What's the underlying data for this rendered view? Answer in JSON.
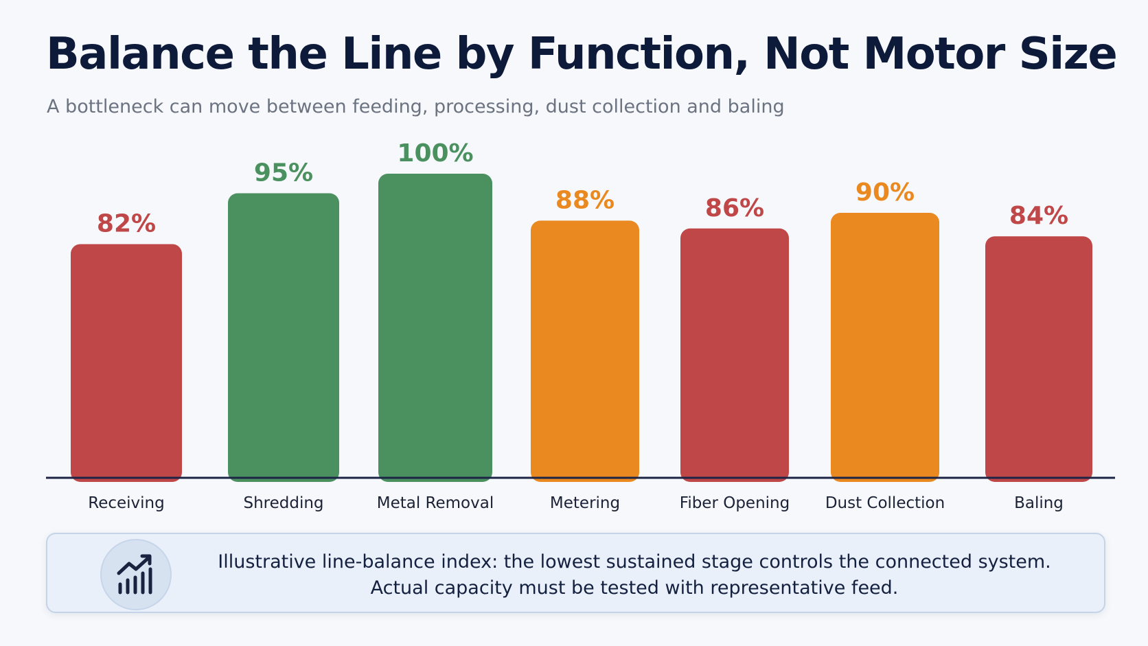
{
  "header": {
    "title": "Balance the Line by Function, Not Motor Size",
    "subtitle": "A bottleneck can move between feeding, processing, dust collection and baling"
  },
  "colors": {
    "red": "#bf4748",
    "green": "#4b9160",
    "orange": "#e9891f",
    "axis": "#1d2547",
    "category_text": "#1b2235"
  },
  "chart_data": {
    "type": "bar",
    "categories": [
      "Receiving",
      "Shredding",
      "Metal Removal",
      "Metering",
      "Fiber Opening",
      "Dust Collection",
      "Baling"
    ],
    "values": [
      82,
      95,
      100,
      88,
      86,
      90,
      84
    ],
    "value_labels": [
      "82%",
      "95%",
      "100%",
      "88%",
      "86%",
      "90%",
      "84%"
    ],
    "bar_colors": [
      "red",
      "green",
      "green",
      "orange",
      "red",
      "orange",
      "red"
    ],
    "title": "Balance the Line by Function, Not Motor Size",
    "subtitle": "A bottleneck can move between feeding, processing, dust collection and baling",
    "grid": false,
    "legend": "none"
  },
  "note": {
    "icon": "trend-chart-icon",
    "line1": "Illustrative line-balance index: the lowest sustained stage controls the connected system.",
    "line2": "Actual capacity must be tested with representative feed."
  }
}
